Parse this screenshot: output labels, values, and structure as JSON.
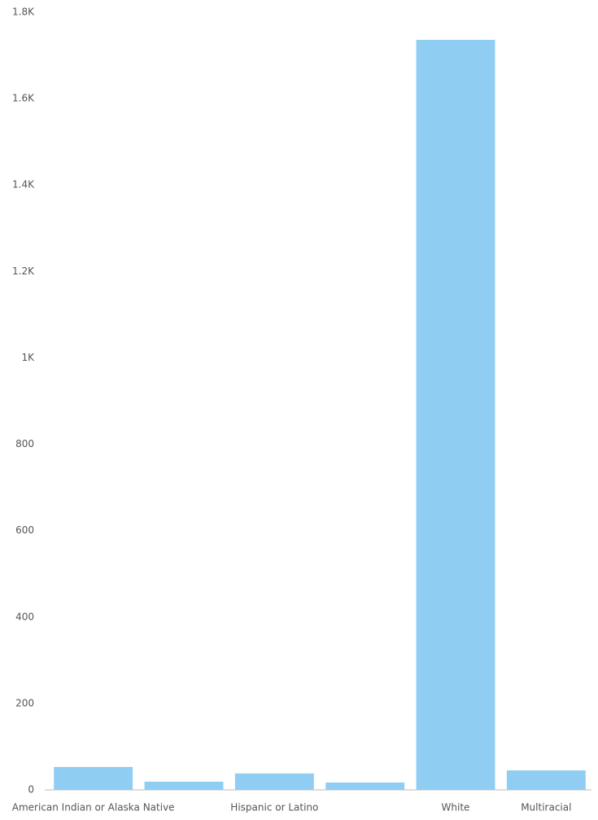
{
  "chart_data": {
    "type": "bar",
    "categories": [
      "American Indian or Alaska Native",
      null,
      "Hispanic or Latino",
      null,
      "White",
      "Multiracial"
    ],
    "values": [
      53,
      19,
      38,
      17,
      1736,
      45
    ],
    "color": "#8fcdf2",
    "ylim": [
      0,
      1800
    ],
    "yticks": [
      0,
      200,
      400,
      600,
      800,
      {
        "value": 1000,
        "label": "1K"
      },
      {
        "value": 1200,
        "label": "1.2K"
      },
      {
        "value": 1400,
        "label": "1.4K"
      },
      {
        "value": 1600,
        "label": "1.6K"
      },
      {
        "value": 1800,
        "label": "1.8K"
      }
    ],
    "grid": false
  }
}
